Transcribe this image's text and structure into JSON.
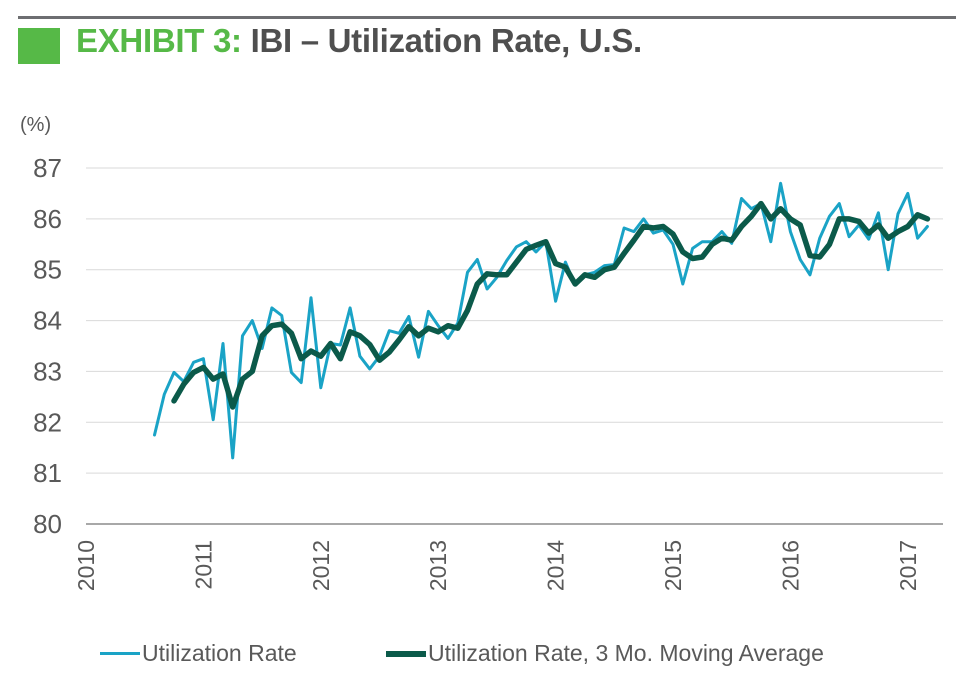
{
  "header": {
    "exhibit_label": "EXHIBIT 3:",
    "title_text": "IBI – Utilization Rate, U.S."
  },
  "colors": {
    "accent_green": "#56b947",
    "rule_gray": "#6d6e71",
    "series_rate": "#1aa3c6",
    "series_ma": "#0b5a4a",
    "axis_text": "#595959"
  },
  "chart_data": {
    "type": "line",
    "title": "IBI – Utilization Rate, U.S.",
    "ylabel": "(%)",
    "xlabel": "",
    "xlim": [
      2010,
      2017.3
    ],
    "ylim": [
      80,
      87
    ],
    "y_ticks": [
      80,
      81,
      82,
      83,
      84,
      85,
      86,
      87
    ],
    "x_ticks": [
      2010,
      2011,
      2012,
      2013,
      2014,
      2015,
      2016,
      2017
    ],
    "grid": "horizontal",
    "legend_position": "bottom",
    "series": [
      {
        "name": "Utilization Rate",
        "color": "#1aa3c6",
        "x": [
          2010.5833,
          2010.6667,
          2010.75,
          2010.8333,
          2010.9167,
          2011.0,
          2011.0833,
          2011.1667,
          2011.25,
          2011.3333,
          2011.4167,
          2011.5,
          2011.5833,
          2011.6667,
          2011.75,
          2011.8333,
          2011.9167,
          2012.0,
          2012.0833,
          2012.1667,
          2012.25,
          2012.3333,
          2012.4167,
          2012.5,
          2012.5833,
          2012.6667,
          2012.75,
          2012.8333,
          2012.9167,
          2013.0,
          2013.0833,
          2013.1667,
          2013.25,
          2013.3333,
          2013.4167,
          2013.5,
          2013.5833,
          2013.6667,
          2013.75,
          2013.8333,
          2013.9167,
          2014.0,
          2014.0833,
          2014.1667,
          2014.25,
          2014.3333,
          2014.4167,
          2014.5,
          2014.5833,
          2014.6667,
          2014.75,
          2014.8333,
          2014.9167,
          2015.0,
          2015.0833,
          2015.1667,
          2015.25,
          2015.3333,
          2015.4167,
          2015.5,
          2015.5833,
          2015.6667,
          2015.75,
          2015.8333,
          2015.9167,
          2016.0,
          2016.0833,
          2016.1667,
          2016.25,
          2016.3333,
          2016.4167,
          2016.5,
          2016.5833,
          2016.6667,
          2016.75,
          2016.8333,
          2016.9167,
          2017.0,
          2017.0833,
          2017.1667,
          2017.25
        ],
        "values": [
          81.75,
          82.55,
          82.98,
          82.8,
          83.18,
          83.25,
          82.05,
          83.55,
          81.3,
          83.7,
          84.0,
          83.45,
          84.25,
          84.1,
          82.98,
          82.78,
          84.45,
          82.68,
          83.55,
          83.52,
          84.25,
          83.3,
          83.05,
          83.3,
          83.8,
          83.75,
          84.08,
          83.28,
          84.18,
          83.9,
          83.65,
          83.95,
          84.95,
          85.2,
          84.62,
          84.85,
          85.18,
          85.45,
          85.55,
          85.35,
          85.55,
          84.38,
          85.15,
          84.7,
          84.9,
          84.95,
          85.08,
          85.1,
          85.82,
          85.75,
          86.0,
          85.72,
          85.78,
          85.5,
          84.72,
          85.42,
          85.55,
          85.55,
          85.75,
          85.52,
          86.4,
          86.2,
          86.3,
          85.55,
          86.7,
          85.75,
          85.2,
          84.9,
          85.62,
          86.05,
          86.3,
          85.65,
          85.88,
          85.6,
          86.12,
          85.0,
          86.1,
          86.5,
          85.62,
          85.85,
          null
        ]
      },
      {
        "name": "Utilization Rate, 3 Mo. Moving Average",
        "color": "#0b5a4a",
        "x": [
          2010.5833,
          2010.6667,
          2010.75,
          2010.8333,
          2010.9167,
          2011.0,
          2011.0833,
          2011.1667,
          2011.25,
          2011.3333,
          2011.4167,
          2011.5,
          2011.5833,
          2011.6667,
          2011.75,
          2011.8333,
          2011.9167,
          2012.0,
          2012.0833,
          2012.1667,
          2012.25,
          2012.3333,
          2012.4167,
          2012.5,
          2012.5833,
          2012.6667,
          2012.75,
          2012.8333,
          2012.9167,
          2013.0,
          2013.0833,
          2013.1667,
          2013.25,
          2013.3333,
          2013.4167,
          2013.5,
          2013.5833,
          2013.6667,
          2013.75,
          2013.8333,
          2013.9167,
          2014.0,
          2014.0833,
          2014.1667,
          2014.25,
          2014.3333,
          2014.4167,
          2014.5,
          2014.5833,
          2014.6667,
          2014.75,
          2014.8333,
          2014.9167,
          2015.0,
          2015.0833,
          2015.1667,
          2015.25,
          2015.3333,
          2015.4167,
          2015.5,
          2015.5833,
          2015.6667,
          2015.75,
          2015.8333,
          2015.9167,
          2016.0,
          2016.0833,
          2016.1667,
          2016.25,
          2016.3333,
          2016.4167,
          2016.5,
          2016.5833,
          2016.6667,
          2016.75,
          2016.8333,
          2016.9167,
          2017.0,
          2017.0833,
          2017.1667,
          2017.25
        ],
        "values": [
          null,
          null,
          82.42,
          82.75,
          82.98,
          83.08,
          82.85,
          82.95,
          82.3,
          82.85,
          83.0,
          83.7,
          83.9,
          83.93,
          83.75,
          83.25,
          83.4,
          83.3,
          83.55,
          83.25,
          83.78,
          83.7,
          83.53,
          83.22,
          83.38,
          83.62,
          83.88,
          83.7,
          83.85,
          83.78,
          83.9,
          83.85,
          84.2,
          84.72,
          84.92,
          84.9,
          84.9,
          85.15,
          85.4,
          85.48,
          85.55,
          85.12,
          85.05,
          84.72,
          84.9,
          84.85,
          85.0,
          85.05,
          85.32,
          85.58,
          85.85,
          85.82,
          85.85,
          85.7,
          85.35,
          85.22,
          85.25,
          85.5,
          85.62,
          85.58,
          85.85,
          86.05,
          86.3,
          86.0,
          86.2,
          86.0,
          85.88,
          85.28,
          85.25,
          85.5,
          86.0,
          86.0,
          85.95,
          85.72,
          85.88,
          85.62,
          85.75,
          85.85,
          86.08,
          86.0,
          null
        ]
      }
    ]
  }
}
